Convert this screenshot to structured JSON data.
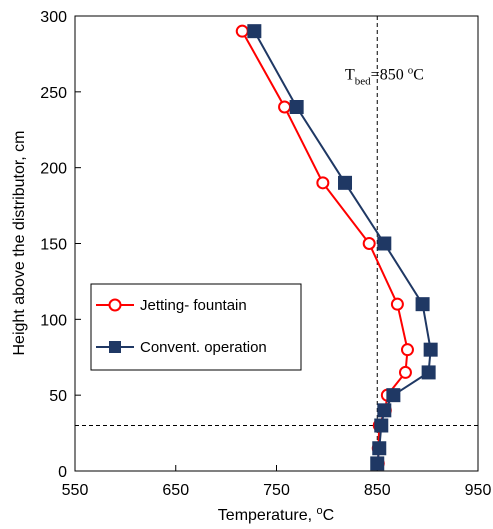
{
  "chart_data": {
    "type": "line",
    "title": "",
    "xlabel": "Temperature, ",
    "xlabel_unit": "oC",
    "ylabel": "Height above the distributor, cm",
    "xlim": [
      550,
      950
    ],
    "ylim": [
      0,
      300
    ],
    "xticks": [
      550,
      650,
      750,
      850,
      950
    ],
    "yticks": [
      0,
      50,
      100,
      150,
      200,
      250,
      300
    ],
    "grid": false,
    "legend_position": "center-left",
    "series": [
      {
        "name": "Jetting- fountain",
        "color": "#ff0000",
        "marker": "open-circle",
        "x": [
          716,
          758,
          796,
          842,
          870,
          880,
          878,
          860,
          858,
          852,
          851,
          851
        ],
        "y": [
          290,
          240,
          190,
          150,
          110,
          80,
          65,
          50,
          40,
          30,
          15,
          5
        ]
      },
      {
        "name": "Convent. operation",
        "color": "#1f3864",
        "marker": "filled-square",
        "x": [
          728,
          770,
          818,
          857,
          895,
          903,
          901,
          866,
          857,
          854,
          852,
          850
        ],
        "y": [
          290,
          240,
          190,
          150,
          110,
          80,
          65,
          50,
          40,
          30,
          15,
          5
        ]
      }
    ],
    "reference_lines": [
      {
        "orientation": "vertical",
        "value": 850,
        "style": "dashed"
      },
      {
        "orientation": "horizontal",
        "value": 30,
        "style": "dashed"
      }
    ],
    "annotation": {
      "base": "T",
      "subscript": "bed",
      "mid": "=850 ",
      "superscript": "o",
      "tail": "C",
      "x": 818,
      "y": 258
    }
  }
}
